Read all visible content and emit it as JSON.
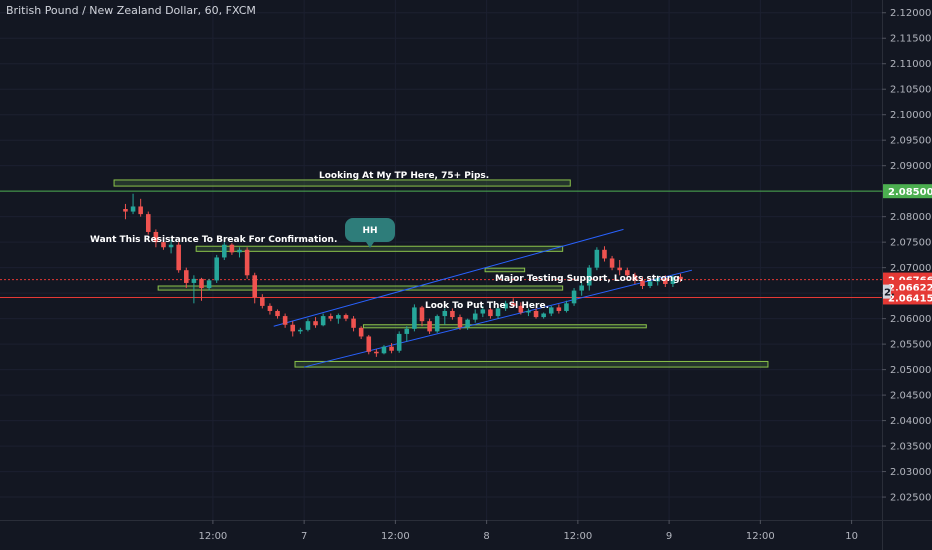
{
  "window": {
    "title": "British Pound / New Zealand Dollar, 60, FXCM"
  },
  "colors": {
    "background": "#131722",
    "bull": "#26a69a",
    "bear": "#ef5350",
    "zone_fill": "#3a5a3a",
    "zone_stroke": "#8bc34a",
    "trend": "#2962ff",
    "level_green": "#4caf50",
    "level_red": "#e53935",
    "hh_bubble": "#2e7d7a"
  },
  "axis": {
    "y_labels": [
      "2.12000",
      "2.11500",
      "2.11000",
      "2.10500",
      "2.10000",
      "2.09500",
      "2.09000",
      "2.08500",
      "2.08000",
      "2.07500",
      "2.07000",
      "2.06500",
      "2.06000",
      "2.05500",
      "2.05000",
      "2.04500",
      "2.04000",
      "2.03500",
      "2.03000",
      "2.02500"
    ],
    "y_values": [
      2.12,
      2.115,
      2.11,
      2.105,
      2.1,
      2.095,
      2.09,
      2.085,
      2.08,
      2.075,
      2.07,
      2.065,
      2.06,
      2.055,
      2.05,
      2.045,
      2.04,
      2.035,
      2.03,
      2.025
    ],
    "x_labels": [
      "12:00",
      "7",
      "12:00",
      "8",
      "12:00",
      "9",
      "12:00",
      "10"
    ],
    "x_hours": [
      12,
      24,
      36,
      48,
      60,
      72,
      84,
      96
    ]
  },
  "price_badges": [
    {
      "label": "2.08500",
      "price": 2.085,
      "color": "#4caf50"
    },
    {
      "label": "2.06766",
      "price": 2.06766,
      "color": "#e53935"
    },
    {
      "label": "33:09",
      "price": 2.0653,
      "color": "#e53935",
      "prefix": "2."
    },
    {
      "label": "2.06622",
      "price": 2.06622,
      "color": "#e53935"
    },
    {
      "label": "2.06415",
      "price": 2.06415,
      "color": "#e53935"
    }
  ],
  "annotations": {
    "tp": "Looking At My TP Here, 75+ Pips.",
    "resistance": "Want This Resistance To Break For Confirmation.",
    "support": "Major Testing Support, Looks strong.",
    "sl": "Look To Put The Sl Here.",
    "hh": "HH"
  },
  "zones": [
    {
      "t1": -1,
      "t2": 59,
      "p_top": 2.0872,
      "p_bot": 2.086
    },
    {
      "t1": 9.8,
      "t2": 58,
      "p_top": 2.0742,
      "p_bot": 2.0732
    },
    {
      "t1": 4.8,
      "t2": 58,
      "p_top": 2.0664,
      "p_bot": 2.0656
    },
    {
      "t1": 47.8,
      "t2": 53,
      "p_top": 2.0699,
      "p_bot": 2.0692
    },
    {
      "t1": 31.8,
      "t2": 69,
      "p_top": 2.0588,
      "p_bot": 2.0582
    },
    {
      "t1": 22.8,
      "t2": 85,
      "p_top": 2.0516,
      "p_bot": 2.0505
    }
  ],
  "chart_data": {
    "type": "candlestick",
    "title": "British Pound / New Zealand Dollar, 60, FXCM",
    "x_unit": "hours",
    "ylim": [
      2.0205,
      2.1225
    ],
    "candles": [
      [
        0.5,
        2.0815,
        2.0825,
        2.0795,
        2.081
      ],
      [
        1.5,
        2.081,
        2.0845,
        2.0805,
        2.082
      ],
      [
        2.5,
        2.082,
        2.0835,
        2.08,
        2.0805
      ],
      [
        3.5,
        2.0805,
        2.081,
        2.0765,
        2.077
      ],
      [
        4.5,
        2.077,
        2.0775,
        2.074,
        2.075
      ],
      [
        5.5,
        2.075,
        2.076,
        2.0735,
        2.074
      ],
      [
        6.5,
        2.074,
        2.0755,
        2.0728,
        2.0745
      ],
      [
        7.5,
        2.0745,
        2.075,
        2.069,
        2.0695
      ],
      [
        8.5,
        2.0695,
        2.07,
        2.066,
        2.067
      ],
      [
        9.5,
        2.067,
        2.0685,
        2.063,
        2.0678
      ],
      [
        10.5,
        2.0678,
        2.068,
        2.0635,
        2.066
      ],
      [
        11.5,
        2.066,
        2.0678,
        2.0655,
        2.0675
      ],
      [
        12.5,
        2.0675,
        2.0725,
        2.067,
        2.072
      ],
      [
        13.5,
        2.072,
        2.075,
        2.0715,
        2.0745
      ],
      [
        14.5,
        2.0745,
        2.0748,
        2.0725,
        2.073
      ],
      [
        15.5,
        2.073,
        2.074,
        2.072,
        2.0735
      ],
      [
        16.5,
        2.0735,
        2.074,
        2.0678,
        2.0685
      ],
      [
        17.5,
        2.0685,
        2.069,
        2.063,
        2.0642
      ],
      [
        18.5,
        2.0642,
        2.0648,
        2.062,
        2.0625
      ],
      [
        19.5,
        2.0625,
        2.063,
        2.0608,
        2.0615
      ],
      [
        20.5,
        2.0615,
        2.0618,
        2.06,
        2.0605
      ],
      [
        21.5,
        2.0605,
        2.061,
        2.0582,
        2.0588
      ],
      [
        22.5,
        2.0588,
        2.0595,
        2.0565,
        2.0575
      ],
      [
        23.5,
        2.0575,
        2.0582,
        2.057,
        2.0578
      ],
      [
        24.5,
        2.0578,
        2.06,
        2.0575,
        2.0595
      ],
      [
        25.5,
        2.0595,
        2.0603,
        2.0582,
        2.0587
      ],
      [
        26.5,
        2.0587,
        2.061,
        2.0585,
        2.0605
      ],
      [
        27.5,
        2.0605,
        2.061,
        2.0595,
        2.06
      ],
      [
        28.5,
        2.06,
        2.061,
        2.059,
        2.0607
      ],
      [
        29.5,
        2.0607,
        2.061,
        2.0595,
        2.06
      ],
      [
        30.5,
        2.06,
        2.0605,
        2.0575,
        2.0582
      ],
      [
        31.5,
        2.0582,
        2.0585,
        2.056,
        2.0565
      ],
      [
        32.5,
        2.0565,
        2.0568,
        2.053,
        2.0535
      ],
      [
        33.5,
        2.0535,
        2.054,
        2.0525,
        2.0532
      ],
      [
        34.5,
        2.0532,
        2.0548,
        2.053,
        2.0545
      ],
      [
        35.5,
        2.0545,
        2.0552,
        2.0532,
        2.0537
      ],
      [
        36.5,
        2.0537,
        2.0575,
        2.0533,
        2.057
      ],
      [
        37.5,
        2.057,
        2.0585,
        2.0555,
        2.058
      ],
      [
        38.5,
        2.058,
        2.0628,
        2.0575,
        2.0622
      ],
      [
        39.5,
        2.0622,
        2.0625,
        2.0585,
        2.0595
      ],
      [
        40.5,
        2.0595,
        2.06,
        2.057,
        2.0575
      ],
      [
        41.5,
        2.0575,
        2.0608,
        2.0572,
        2.0605
      ],
      [
        42.5,
        2.0605,
        2.062,
        2.0588,
        2.0615
      ],
      [
        43.5,
        2.0615,
        2.062,
        2.0598,
        2.0603
      ],
      [
        44.5,
        2.0603,
        2.0608,
        2.0578,
        2.0583
      ],
      [
        45.5,
        2.0583,
        2.06,
        2.0578,
        2.0598
      ],
      [
        46.5,
        2.0598,
        2.0618,
        2.0592,
        2.061
      ],
      [
        47.5,
        2.061,
        2.0625,
        2.0603,
        2.0618
      ],
      [
        48.5,
        2.0618,
        2.0622,
        2.06,
        2.0605
      ],
      [
        49.5,
        2.0605,
        2.0628,
        2.06,
        2.062
      ],
      [
        50.5,
        2.062,
        2.0635,
        2.0615,
        2.063
      ],
      [
        51.5,
        2.063,
        2.064,
        2.0622,
        2.0625
      ],
      [
        52.5,
        2.0625,
        2.0632,
        2.0608,
        2.0612
      ],
      [
        53.5,
        2.0612,
        2.062,
        2.0605,
        2.0615
      ],
      [
        54.5,
        2.0615,
        2.062,
        2.06,
        2.0603
      ],
      [
        55.5,
        2.0603,
        2.0612,
        2.06,
        2.061
      ],
      [
        56.5,
        2.061,
        2.0625,
        2.0605,
        2.0622
      ],
      [
        57.5,
        2.0622,
        2.0628,
        2.061,
        2.0615
      ],
      [
        58.5,
        2.0615,
        2.0635,
        2.0612,
        2.063
      ],
      [
        59.5,
        2.063,
        2.066,
        2.0625,
        2.0655
      ],
      [
        60.5,
        2.0655,
        2.067,
        2.0645,
        2.0665
      ],
      [
        61.5,
        2.0665,
        2.0705,
        2.0655,
        2.07
      ],
      [
        62.5,
        2.07,
        2.074,
        2.0695,
        2.0735
      ],
      [
        63.5,
        2.0735,
        2.0742,
        2.0712,
        2.0718
      ],
      [
        64.5,
        2.0718,
        2.0723,
        2.0695,
        2.07
      ],
      [
        65.5,
        2.07,
        2.0715,
        2.0685,
        2.0695
      ],
      [
        66.5,
        2.0695,
        2.07,
        2.068,
        2.0685
      ],
      [
        67.5,
        2.0685,
        2.069,
        2.0668,
        2.0675
      ],
      [
        68.5,
        2.0675,
        2.0682,
        2.0658,
        2.0664
      ],
      [
        69.5,
        2.0664,
        2.0678,
        2.066,
        2.0673
      ],
      [
        70.5,
        2.0673,
        2.0685,
        2.0665,
        2.0679
      ],
      [
        71.5,
        2.0679,
        2.0685,
        2.0662,
        2.0668
      ],
      [
        72.5,
        2.0668,
        2.0685,
        2.0662,
        2.0682
      ],
      [
        73.5,
        2.0682,
        2.0688,
        2.0672,
        2.0677
      ]
    ]
  }
}
